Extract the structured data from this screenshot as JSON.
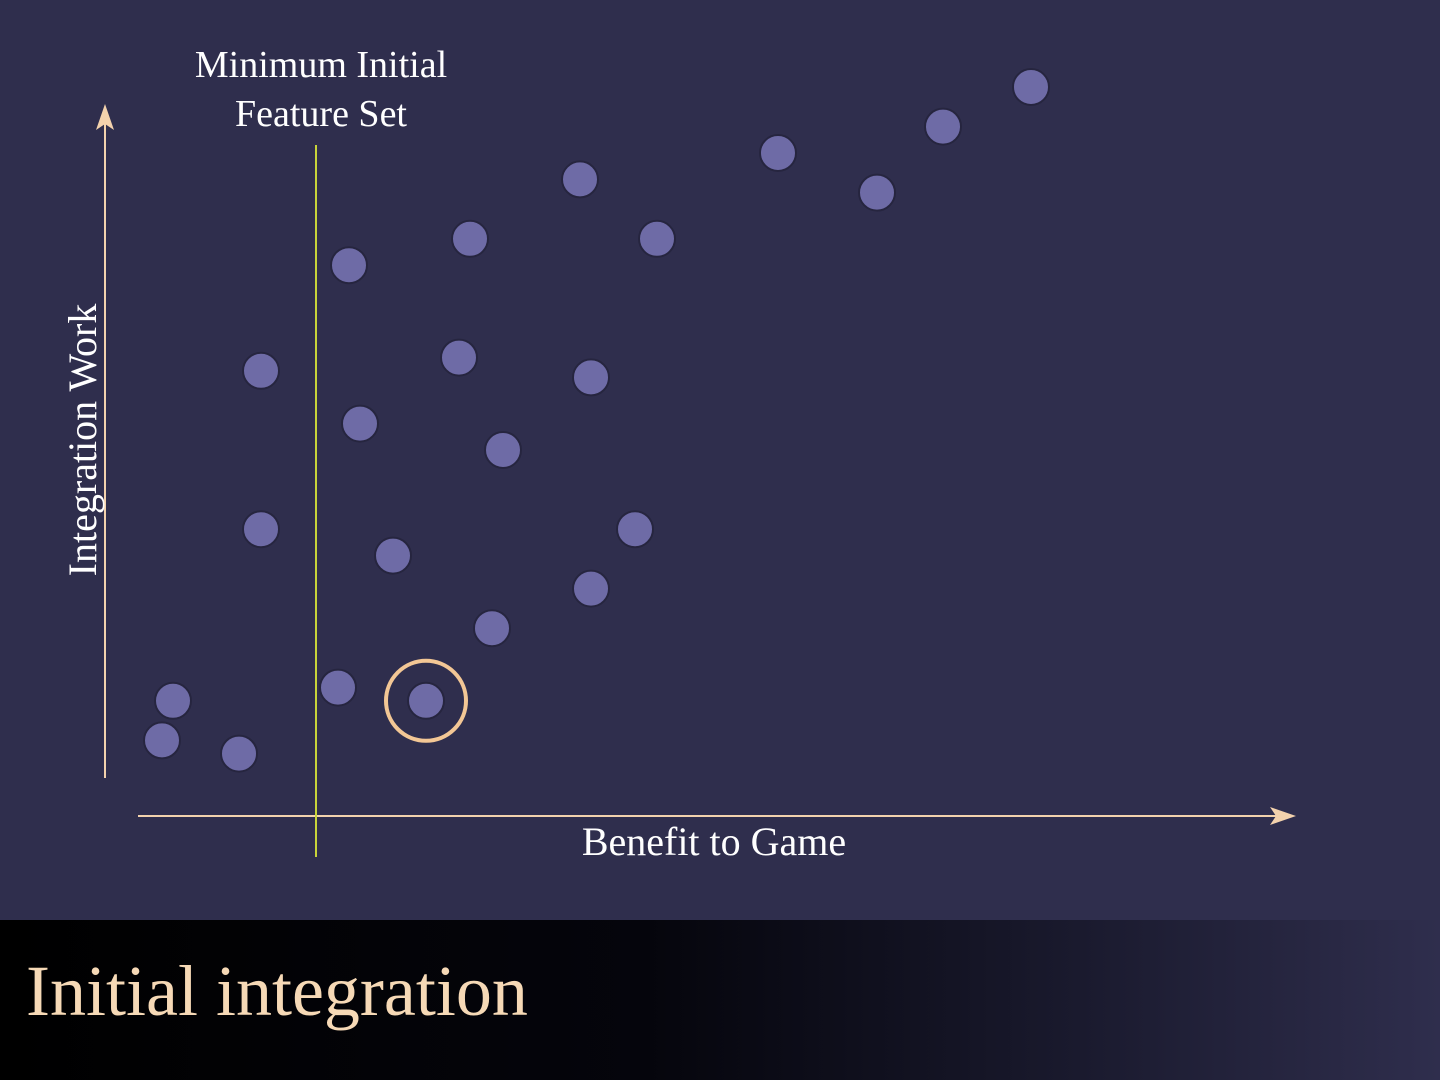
{
  "slide": {
    "title": "Initial integration"
  },
  "chart_data": {
    "type": "scatter",
    "xlabel": "Benefit to Game",
    "ylabel": "Integration Work",
    "title": "",
    "xlim": [
      0,
      100
    ],
    "ylim": [
      0,
      100
    ],
    "grid": false,
    "colors": {
      "background": "#2f2e4d",
      "point_fill": "#6e6ba6",
      "point_stroke": "#26253f",
      "axis": "#f3d2ad",
      "threshold_line": "#c8d43a",
      "highlight_ring": "#f3c795",
      "label": "#ffffff"
    },
    "threshold": {
      "x": 16,
      "label_lines": [
        "Minimum Initial",
        "Feature Set"
      ]
    },
    "highlighted_index": 8,
    "points": [
      {
        "x": 3,
        "y": 12
      },
      {
        "x": 2,
        "y": 6
      },
      {
        "x": 9,
        "y": 4
      },
      {
        "x": 11,
        "y": 38
      },
      {
        "x": 11,
        "y": 62
      },
      {
        "x": 18,
        "y": 14
      },
      {
        "x": 20,
        "y": 54
      },
      {
        "x": 19,
        "y": 78
      },
      {
        "x": 26,
        "y": 12
      },
      {
        "x": 23,
        "y": 34
      },
      {
        "x": 29,
        "y": 64
      },
      {
        "x": 30,
        "y": 82
      },
      {
        "x": 33,
        "y": 50
      },
      {
        "x": 32,
        "y": 23
      },
      {
        "x": 40,
        "y": 91
      },
      {
        "x": 41,
        "y": 61
      },
      {
        "x": 41,
        "y": 29
      },
      {
        "x": 45,
        "y": 38
      },
      {
        "x": 47,
        "y": 82
      },
      {
        "x": 58,
        "y": 95
      },
      {
        "x": 67,
        "y": 89
      },
      {
        "x": 73,
        "y": 99
      },
      {
        "x": 81,
        "y": 105
      }
    ]
  }
}
